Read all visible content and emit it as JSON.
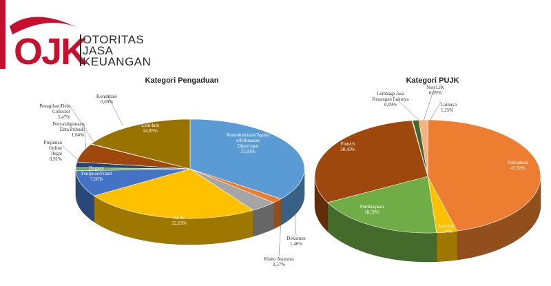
{
  "brand": {
    "abbr": "OJK",
    "name_lines": [
      "OTORITAS",
      "JASA",
      "KEUANGAN"
    ]
  },
  "chart_data": [
    {
      "type": "pie",
      "title": "Kategori Pengaduan",
      "slices": [
        {
          "label": "Restrukturisasi/Agunan/Pelunasan Dipercepat",
          "display": [
            "Restrukturisasi/Agunа",
            "n/Pelunasan",
            "Dipercepat",
            "31,81%"
          ],
          "value": 31.81,
          "color": "#5B9BD5"
        },
        {
          "label": "Dokumen",
          "display": [
            "Dokumen",
            "1,46%"
          ],
          "value": 1.46,
          "color": "#ED7D31"
        },
        {
          "label": "Klaim Asuransi",
          "display": [
            "Klaim Asuransi",
            "3,37%"
          ],
          "value": 3.37,
          "color": "#A5A5A5"
        },
        {
          "label": "SLIK",
          "display": [
            "SLIK",
            "22,63%"
          ],
          "value": 22.63,
          "color": "#FFC000"
        },
        {
          "label": "Dugaan Penipuan/Fraud",
          "display": [
            "Dugaan",
            "Penipuan/Fraud",
            "7,66%"
          ],
          "value": 7.66,
          "color": "#4472C4"
        },
        {
          "label": "Pinjaman Online Ilegal",
          "display": [
            "Pinjaman",
            "Online",
            "Ilegal",
            "0,91%"
          ],
          "value": 0.91,
          "color": "#70AD47"
        },
        {
          "label": "Penyalahgunaan Data Pribadi",
          "display": [
            "Penyalahgunaan",
            "Data Pribadi",
            "1,64%"
          ],
          "value": 1.64,
          "color": "#264478"
        },
        {
          "label": "Penagihan/Debt Collector",
          "display": [
            "Penagihan/Debt",
            "Collector",
            "5,47%"
          ],
          "value": 5.47,
          "color": "#9E480E"
        },
        {
          "label": "Konsultasi",
          "display": [
            "Konsultasi",
            "0,09%"
          ],
          "value": 0.09,
          "color": "#636363"
        },
        {
          "label": "Lain-lain",
          "display": [
            "Lain-lain",
            "14,95%"
          ],
          "value": 14.95,
          "color": "#997300"
        }
      ]
    },
    {
      "type": "pie",
      "title": "Kategori PUJK",
      "slices": [
        {
          "label": "Perbankan",
          "display": [
            "Perbankan",
            "45,82%"
          ],
          "value": 45.82,
          "color": "#ED7D31"
        },
        {
          "label": "Asuransi",
          "display": [
            "Asuransi",
            "2,94%"
          ],
          "value": 2.94,
          "color": "#FFC000"
        },
        {
          "label": "Pembiayaan",
          "display": [
            "Pembiayaan",
            "18,59%"
          ],
          "value": 18.59,
          "color": "#70AD47"
        },
        {
          "label": "Fintech",
          "display": [
            "Fintech",
            "30,43%"
          ],
          "value": 30.43,
          "color": "#9E480E"
        },
        {
          "label": "Lembaga Jasa Keuangan Lainnya",
          "display": [
            "Lembaga Jasa",
            "Keuangan Lainnya",
            "0,09%"
          ],
          "value": 0.09,
          "color": "#A5A5A5"
        },
        {
          "label": "Non LJK",
          "display": [
            "Non LJK",
            "0,89%"
          ],
          "value": 0.89,
          "color": "#43682B"
        },
        {
          "label": "Lainnya",
          "display": [
            "Lainnya",
            "1,25%"
          ],
          "value": 1.25,
          "color": "#F4B183"
        }
      ]
    }
  ]
}
